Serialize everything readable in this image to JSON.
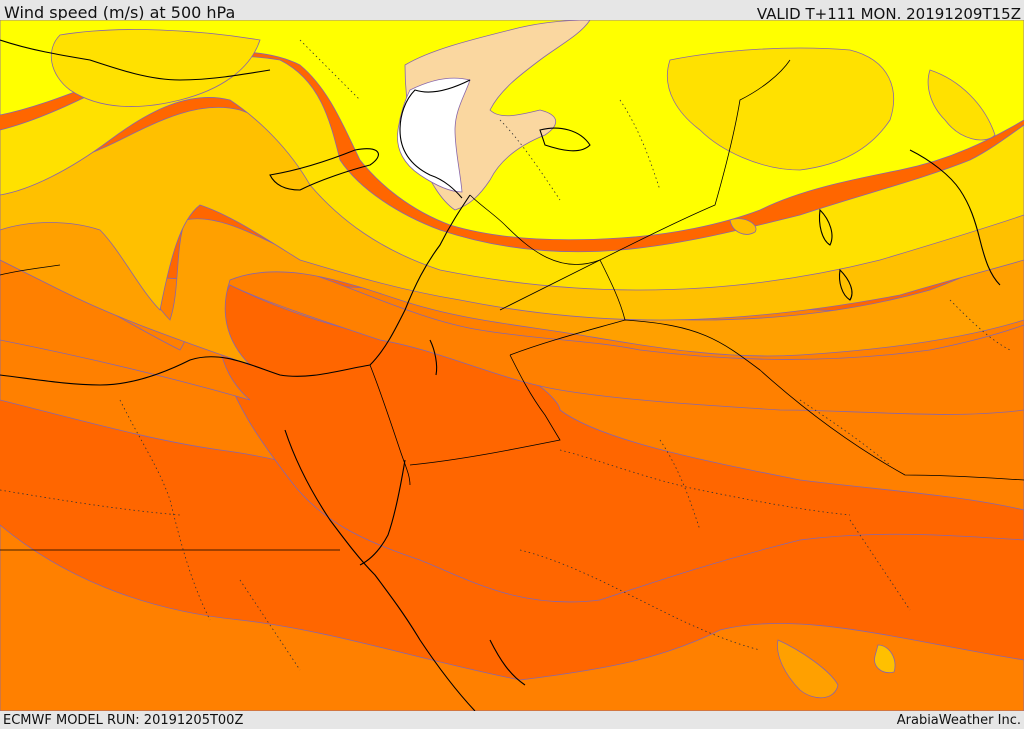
{
  "header": {
    "title": "Wind speed (m/s) at 500 hPa",
    "valid_time": "VALID T+111 MON. 20191209T15Z"
  },
  "footer": {
    "model_run": "ECMWF MODEL RUN: 20191205T00Z",
    "credit": "ArabiaWeather Inc."
  },
  "map": {
    "field": "wind speed at 500 hPa",
    "palette": [
      "#ffffff",
      "#fad7a0",
      "#ffff00",
      "#ffe100",
      "#ffc000",
      "#ffa000",
      "#ff8000",
      "#ff6600"
    ]
  }
}
